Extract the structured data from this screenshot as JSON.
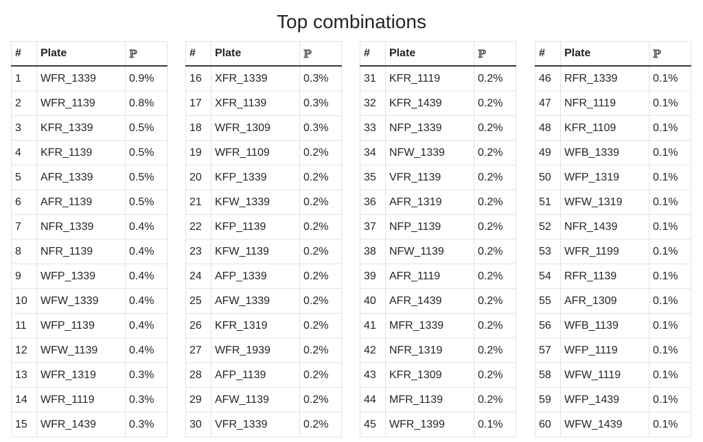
{
  "title": "Top combinations",
  "columns": {
    "rank": "#",
    "plate": "Plate",
    "prob": "ℙ"
  },
  "tables": [
    {
      "rows": [
        [
          "1",
          "WFR_1339",
          "0.9%"
        ],
        [
          "2",
          "WFR_1139",
          "0.8%"
        ],
        [
          "3",
          "KFR_1339",
          "0.5%"
        ],
        [
          "4",
          "KFR_1139",
          "0.5%"
        ],
        [
          "5",
          "AFR_1339",
          "0.5%"
        ],
        [
          "6",
          "AFR_1139",
          "0.5%"
        ],
        [
          "7",
          "NFR_1339",
          "0.4%"
        ],
        [
          "8",
          "NFR_1139",
          "0.4%"
        ],
        [
          "9",
          "WFP_1339",
          "0.4%"
        ],
        [
          "10",
          "WFW_1339",
          "0.4%"
        ],
        [
          "11",
          "WFP_1139",
          "0.4%"
        ],
        [
          "12",
          "WFW_1139",
          "0.4%"
        ],
        [
          "13",
          "WFR_1319",
          "0.3%"
        ],
        [
          "14",
          "WFR_1119",
          "0.3%"
        ],
        [
          "15",
          "WFR_1439",
          "0.3%"
        ]
      ]
    },
    {
      "rows": [
        [
          "16",
          "XFR_1339",
          "0.3%"
        ],
        [
          "17",
          "XFR_1139",
          "0.3%"
        ],
        [
          "18",
          "WFR_1309",
          "0.3%"
        ],
        [
          "19",
          "WFR_1109",
          "0.2%"
        ],
        [
          "20",
          "KFP_1339",
          "0.2%"
        ],
        [
          "21",
          "KFW_1339",
          "0.2%"
        ],
        [
          "22",
          "KFP_1139",
          "0.2%"
        ],
        [
          "23",
          "KFW_1139",
          "0.2%"
        ],
        [
          "24",
          "AFP_1339",
          "0.2%"
        ],
        [
          "25",
          "AFW_1339",
          "0.2%"
        ],
        [
          "26",
          "KFR_1319",
          "0.2%"
        ],
        [
          "27",
          "WFR_1939",
          "0.2%"
        ],
        [
          "28",
          "AFP_1139",
          "0.2%"
        ],
        [
          "29",
          "AFW_1139",
          "0.2%"
        ],
        [
          "30",
          "VFR_1339",
          "0.2%"
        ]
      ]
    },
    {
      "rows": [
        [
          "31",
          "KFR_1119",
          "0.2%"
        ],
        [
          "32",
          "KFR_1439",
          "0.2%"
        ],
        [
          "33",
          "NFP_1339",
          "0.2%"
        ],
        [
          "34",
          "NFW_1339",
          "0.2%"
        ],
        [
          "35",
          "VFR_1139",
          "0.2%"
        ],
        [
          "36",
          "AFR_1319",
          "0.2%"
        ],
        [
          "37",
          "NFP_1139",
          "0.2%"
        ],
        [
          "38",
          "NFW_1139",
          "0.2%"
        ],
        [
          "39",
          "AFR_1119",
          "0.2%"
        ],
        [
          "40",
          "AFR_1439",
          "0.2%"
        ],
        [
          "41",
          "MFR_1339",
          "0.2%"
        ],
        [
          "42",
          "NFR_1319",
          "0.2%"
        ],
        [
          "43",
          "KFR_1309",
          "0.2%"
        ],
        [
          "44",
          "MFR_1139",
          "0.2%"
        ],
        [
          "45",
          "WFR_1399",
          "0.1%"
        ]
      ]
    },
    {
      "rows": [
        [
          "46",
          "RFR_1339",
          "0.1%"
        ],
        [
          "47",
          "NFR_1119",
          "0.1%"
        ],
        [
          "48",
          "KFR_1109",
          "0.1%"
        ],
        [
          "49",
          "WFB_1339",
          "0.1%"
        ],
        [
          "50",
          "WFP_1319",
          "0.1%"
        ],
        [
          "51",
          "WFW_1319",
          "0.1%"
        ],
        [
          "52",
          "NFR_1439",
          "0.1%"
        ],
        [
          "53",
          "WFR_1199",
          "0.1%"
        ],
        [
          "54",
          "RFR_1139",
          "0.1%"
        ],
        [
          "55",
          "AFR_1309",
          "0.1%"
        ],
        [
          "56",
          "WFB_1139",
          "0.1%"
        ],
        [
          "57",
          "WFP_1119",
          "0.1%"
        ],
        [
          "58",
          "WFW_1119",
          "0.1%"
        ],
        [
          "59",
          "WFP_1439",
          "0.1%"
        ],
        [
          "60",
          "WFW_1439",
          "0.1%"
        ]
      ]
    }
  ]
}
